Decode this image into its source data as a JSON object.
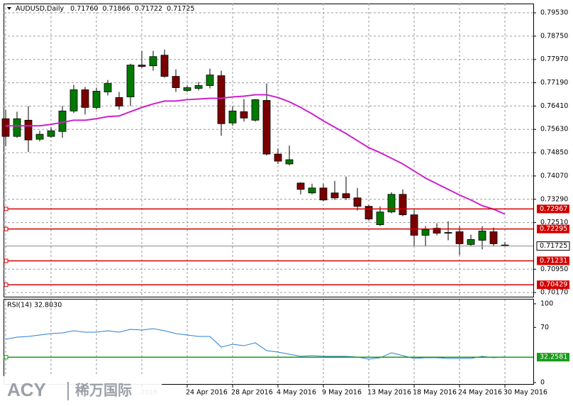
{
  "logo": {
    "brand": "ACY",
    "name": "稀万国际"
  },
  "chart_data": [
    {
      "type": "candlestick",
      "title": "AUDUSD,Daily",
      "ohlc_labels": [
        "0.71760",
        "0.71866",
        "0.71722",
        "0.71725"
      ],
      "categories": [
        null,
        null,
        null,
        null,
        null,
        null,
        null,
        null,
        null,
        null,
        null,
        null,
        "2016",
        null,
        null,
        null,
        "24 Apr 2016",
        null,
        null,
        null,
        "28 Apr 2016",
        null,
        null,
        null,
        "4 May 2016",
        null,
        null,
        null,
        "9 May 2016",
        null,
        null,
        null,
        "13 May 2016",
        null,
        null,
        null,
        "18 May 2016",
        null,
        null,
        null,
        "24 May 2016",
        null,
        null,
        null,
        "30 May 2016"
      ],
      "open": [
        0.75985,
        0.75394,
        0.75937,
        0.75299,
        0.75394,
        0.75559,
        0.76245,
        0.76954,
        0.76363,
        0.76883,
        0.76694,
        0.76717,
        0.77781,
        0.77757,
        0.78112,
        0.77403,
        0.7693,
        0.77001,
        0.77096,
        0.77426,
        0.75843,
        0.76221,
        0.75937,
        0.76599,
        0.74803,
        0.74472,
        0.73834,
        0.73503,
        0.73668,
        0.73503,
        0.73479,
        0.73337,
        0.73054,
        0.72439,
        0.72865,
        0.73455,
        0.7277,
        0.72085,
        0.72321,
        0.72179,
        0.72203,
        0.71777,
        0.71919,
        0.72203,
        0.7176
      ],
      "high": [
        0.76292,
        0.76221,
        0.7641,
        0.75583,
        0.75701,
        0.7641,
        0.77119,
        0.77048,
        0.77025,
        0.77285,
        0.76883,
        0.77828,
        0.78254,
        0.78254,
        0.78301,
        0.77639,
        0.77096,
        0.77214,
        0.77663,
        0.77592,
        0.7641,
        0.76646,
        0.76646,
        0.77166,
        0.74992,
        0.75086,
        0.73857,
        0.7381,
        0.7381,
        0.73905,
        0.74046,
        0.73668,
        0.73101,
        0.73054,
        0.73526,
        0.73621,
        0.72936,
        0.72392,
        0.72487,
        0.72557,
        0.72392,
        0.72108,
        0.72392,
        0.72345,
        0.71866
      ],
      "low": [
        0.75063,
        0.75346,
        0.74874,
        0.75228,
        0.75346,
        0.75346,
        0.76174,
        0.76126,
        0.76292,
        0.76765,
        0.76292,
        0.7641,
        0.77686,
        0.77592,
        0.77356,
        0.76883,
        0.76883,
        0.7693,
        0.77001,
        0.75417,
        0.75748,
        0.7589,
        0.7589,
        0.74755,
        0.74472,
        0.74425,
        0.73455,
        0.73455,
        0.73219,
        0.73266,
        0.73266,
        0.72912,
        0.72581,
        0.72392,
        0.72817,
        0.72723,
        0.7173,
        0.7173,
        0.72085,
        0.71919,
        0.71423,
        0.7173,
        0.71612,
        0.7173,
        0.71722
      ],
      "close": [
        0.75394,
        0.75985,
        0.75276,
        0.75465,
        0.75583,
        0.76245,
        0.76954,
        0.76363,
        0.76906,
        0.77166,
        0.7641,
        0.77781,
        0.77734,
        0.78065,
        0.77403,
        0.77025,
        0.77025,
        0.77096,
        0.7745,
        0.75819,
        0.76245,
        0.76008,
        0.76623,
        0.74803,
        0.74566,
        0.74614,
        0.73621,
        0.73668,
        0.73266,
        0.73337,
        0.73337,
        0.73054,
        0.72628,
        0.72865,
        0.73455,
        0.7277,
        0.72085,
        0.72274,
        0.72156,
        0.72156,
        0.71801,
        0.71943,
        0.72227,
        0.71801,
        0.71725
      ],
      "up_color": "#007a00",
      "down_color": "#7a0000",
      "ma": {
        "color": "#cc22cc",
        "values": [
          0.75748,
          0.75748,
          0.75748,
          0.75748,
          0.75796,
          0.75866,
          0.75937,
          0.75937,
          0.75985,
          0.76056,
          0.76079,
          0.76221,
          0.76363,
          0.76481,
          0.76576,
          0.76576,
          0.76623,
          0.76646,
          0.7667,
          0.7667,
          0.76717,
          0.76741,
          0.76788,
          0.76788,
          0.76694,
          0.76552,
          0.76363,
          0.7615,
          0.75914,
          0.75701,
          0.75488,
          0.75252,
          0.75016,
          0.7485,
          0.74661,
          0.74472,
          0.74236,
          0.73999,
          0.7381,
          0.73621,
          0.73432,
          0.73266,
          0.73077,
          0.72959,
          0.72794
        ]
      },
      "levels": [
        0.72967,
        0.72295,
        0.71231,
        0.70429
      ],
      "level_color": "#d40000",
      "ylim": [
        0.7003,
        0.7984
      ],
      "yticks": [
        {
          "value": 0.7953,
          "label": "0.79530"
        },
        {
          "value": 0.7875,
          "label": "0.78750"
        },
        {
          "value": 0.7797,
          "label": "0.77970"
        },
        {
          "value": 0.7719,
          "label": "0.77190"
        },
        {
          "value": 0.7641,
          "label": "0.76410"
        },
        {
          "value": 0.7563,
          "label": "0.75630"
        },
        {
          "value": 0.7485,
          "label": "0.74850"
        },
        {
          "value": 0.7407,
          "label": "0.74070"
        },
        {
          "value": 0.7329,
          "label": "0.73290"
        },
        {
          "value": 0.7251,
          "label": "0.72510"
        },
        {
          "value": 0.7095,
          "label": "0.70950"
        },
        {
          "value": 0.7017,
          "label": "0.70170"
        }
      ],
      "grid": true
    },
    {
      "type": "line",
      "title": "RSI(14) 32.8030",
      "color": "#2a7fd4",
      "values": [
        55.0,
        57.7,
        58.6,
        60.4,
        62.2,
        63.1,
        65.8,
        64.0,
        64.0,
        65.8,
        64.0,
        67.6,
        66.7,
        68.5,
        65.8,
        62.2,
        60.4,
        58.6,
        58.6,
        45.0,
        48.6,
        46.8,
        50.5,
        40.5,
        38.7,
        36.0,
        33.3,
        34.2,
        33.3,
        33.3,
        33.3,
        32.4,
        29.7,
        31.5,
        37.8,
        34.2,
        30.6,
        31.5,
        31.5,
        30.6,
        30.6,
        30.6,
        33.3,
        31.5,
        32.803
      ],
      "level": 32.2581,
      "level_color": "#1a9a1a",
      "ylim": [
        0,
        100
      ],
      "yticks": [
        100,
        70,
        0
      ]
    }
  ]
}
